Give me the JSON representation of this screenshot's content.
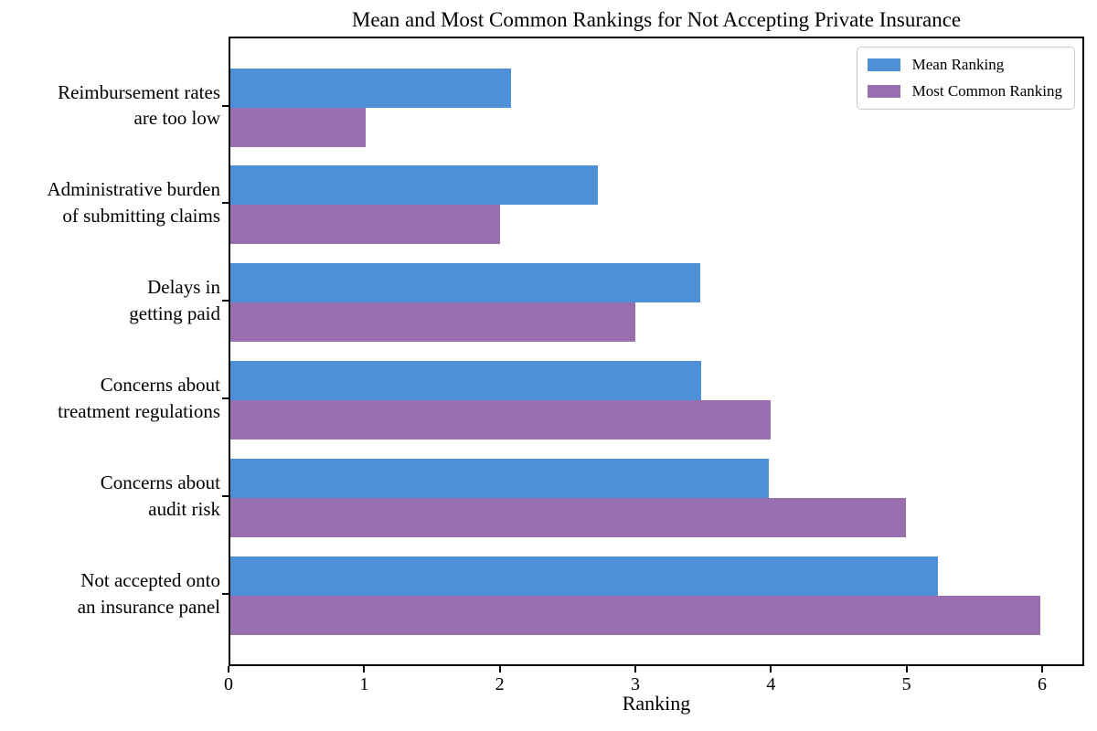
{
  "chart_data": {
    "type": "bar",
    "orientation": "horizontal",
    "title": "Mean and Most Common Rankings for Not Accepting Private Insurance",
    "xlabel": "Ranking",
    "ylabel": "",
    "xlim": [
      0,
      6.31
    ],
    "xticks": [
      0,
      1,
      2,
      3,
      4,
      5,
      6
    ],
    "grid": false,
    "legend_position": "upper right",
    "categories": [
      "Reimbursement rates are too low",
      "Administrative burden of submitting claims",
      "Delays in getting paid",
      "Concerns about treatment regulations",
      "Concerns about audit risk",
      "Not accepted onto an insurance panel"
    ],
    "category_lines": [
      [
        "Reimbursement rates",
        "are too low"
      ],
      [
        "Administrative burden",
        "of submitting claims"
      ],
      [
        "Delays in",
        "getting paid"
      ],
      [
        "Concerns about",
        "treatment regulations"
      ],
      [
        "Concerns about",
        "audit risk"
      ],
      [
        "Not accepted onto",
        "an insurance panel"
      ]
    ],
    "series": [
      {
        "name": "Mean Ranking",
        "color": "#4d90d8",
        "values": [
          2.08,
          2.72,
          3.48,
          3.49,
          3.99,
          5.24
        ]
      },
      {
        "name": "Most Common Ranking",
        "color": "#996fb0",
        "values": [
          1,
          2,
          3,
          4,
          5,
          6
        ]
      }
    ]
  },
  "colors": {
    "mean_ranking": "#4d90d8",
    "most_common_ranking": "#996fb0",
    "spine": "#000000",
    "legend_border": "#c9c9c9",
    "background": "#ffffff",
    "text": "#000000"
  }
}
